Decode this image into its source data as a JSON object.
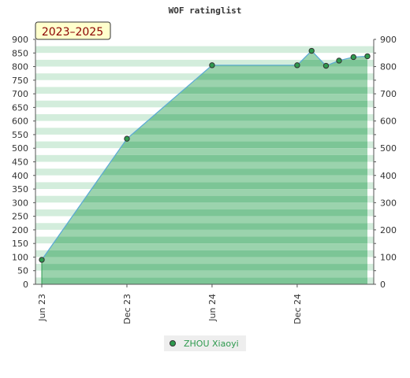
{
  "chart_data": {
    "type": "area",
    "title": "WOF ratinglist",
    "period_label": "2023–2025",
    "xlabel": "",
    "ylabel": "",
    "x_ticks": [
      "2023-06-01",
      "2023-12-01",
      "2024-06-01",
      "2024-12-01"
    ],
    "x_tick_labels": [
      "Jun 23",
      "Dec 23",
      "Jun 24",
      "Dec 24"
    ],
    "x_range": [
      "2023-06-01",
      "2025-05-01"
    ],
    "ylim": [
      0,
      900
    ],
    "y_ticks_left": [
      0,
      50,
      100,
      150,
      200,
      250,
      300,
      350,
      400,
      450,
      500,
      550,
      600,
      650,
      700,
      750,
      800,
      850,
      900
    ],
    "y_ticks_right": [
      0,
      100,
      200,
      300,
      400,
      500,
      600,
      700,
      800,
      900
    ],
    "grid": false,
    "legend_position": "bottom",
    "series": [
      {
        "name": "ZHOU Xiaoyi",
        "color": "#2e9a4e",
        "line_color": "#5aa9d6",
        "fill_color": "#7cc596",
        "points": [
          {
            "x": "2023-06-01",
            "y": 90
          },
          {
            "x": "2023-12-01",
            "y": 535
          },
          {
            "x": "2024-06-01",
            "y": 805
          },
          {
            "x": "2024-12-01",
            "y": 805
          },
          {
            "x": "2025-01-01",
            "y": 858
          },
          {
            "x": "2025-02-01",
            "y": 803
          },
          {
            "x": "2025-03-01",
            "y": 822
          },
          {
            "x": "2025-04-01",
            "y": 835
          },
          {
            "x": "2025-05-01",
            "y": 838
          }
        ]
      }
    ]
  }
}
